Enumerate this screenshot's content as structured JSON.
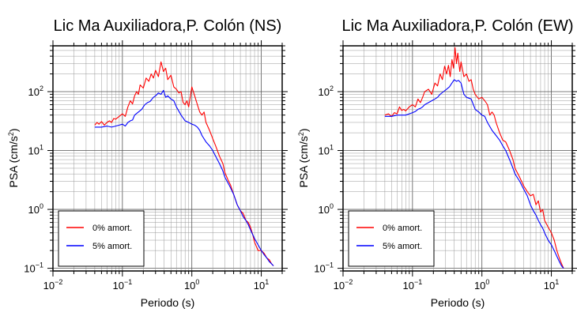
{
  "chart_data": [
    {
      "type": "line",
      "title": "Lic Ma Auxiliadora,P. Colón (NS)",
      "xlabel": "Periodo (s)",
      "ylabel": "PSA (cm/s2)",
      "xscale": "log",
      "yscale": "log",
      "xlim": [
        0.01,
        20
      ],
      "ylim": [
        0.09,
        600
      ],
      "x_ticks": [
        {
          "b": "10",
          "e": "−2",
          "v": 0.01
        },
        {
          "b": "10",
          "e": "−1",
          "v": 0.1
        },
        {
          "b": "10",
          "e": "0",
          "v": 1
        },
        {
          "b": "10",
          "e": "1",
          "v": 10
        }
      ],
      "y_ticks": [
        {
          "b": "10",
          "e": "−1",
          "v": 0.1
        },
        {
          "b": "10",
          "e": "0",
          "v": 1
        },
        {
          "b": "10",
          "e": "1",
          "v": 10
        },
        {
          "b": "10",
          "e": "2",
          "v": 100
        }
      ],
      "grid": true,
      "legend_placement": "bottom-left",
      "series": [
        {
          "name": "0% amort.",
          "color": "#ff0000",
          "points": [
            [
              0.04,
              27
            ],
            [
              0.043,
              30
            ],
            [
              0.046,
              28
            ],
            [
              0.05,
              31
            ],
            [
              0.055,
              27
            ],
            [
              0.06,
              30
            ],
            [
              0.065,
              32
            ],
            [
              0.07,
              30
            ],
            [
              0.075,
              35
            ],
            [
              0.08,
              34
            ],
            [
              0.09,
              38
            ],
            [
              0.1,
              42
            ],
            [
              0.11,
              38
            ],
            [
              0.12,
              55
            ],
            [
              0.13,
              70
            ],
            [
              0.14,
              62
            ],
            [
              0.15,
              85
            ],
            [
              0.16,
              100
            ],
            [
              0.17,
              90
            ],
            [
              0.18,
              130
            ],
            [
              0.2,
              115
            ],
            [
              0.22,
              170
            ],
            [
              0.24,
              150
            ],
            [
              0.26,
              200
            ],
            [
              0.28,
              170
            ],
            [
              0.3,
              230
            ],
            [
              0.33,
              180
            ],
            [
              0.36,
              320
            ],
            [
              0.39,
              220
            ],
            [
              0.42,
              250
            ],
            [
              0.45,
              160
            ],
            [
              0.5,
              190
            ],
            [
              0.55,
              120
            ],
            [
              0.6,
              110
            ],
            [
              0.65,
              95
            ],
            [
              0.7,
              100
            ],
            [
              0.75,
              65
            ],
            [
              0.8,
              60
            ],
            [
              0.85,
              70
            ],
            [
              0.9,
              55
            ],
            [
              1.0,
              120
            ],
            [
              1.1,
              85
            ],
            [
              1.2,
              60
            ],
            [
              1.3,
              45
            ],
            [
              1.4,
              40
            ],
            [
              1.5,
              45
            ],
            [
              1.6,
              30
            ],
            [
              1.8,
              22
            ],
            [
              2.0,
              16
            ],
            [
              2.2,
              12
            ],
            [
              2.5,
              8
            ],
            [
              2.8,
              6
            ],
            [
              3.0,
              4.2
            ],
            [
              3.3,
              3.2
            ],
            [
              3.6,
              2.6
            ],
            [
              4.0,
              1.8
            ],
            [
              4.5,
              1.2
            ],
            [
              5.0,
              0.95
            ],
            [
              5.5,
              0.85
            ],
            [
              6.0,
              0.65
            ],
            [
              6.5,
              0.6
            ],
            [
              7.0,
              0.5
            ],
            [
              7.5,
              0.38
            ],
            [
              8.0,
              0.28
            ],
            [
              9.0,
              0.2
            ],
            [
              10,
              0.2
            ],
            [
              11,
              0.18
            ],
            [
              12,
              0.15
            ],
            [
              13,
              0.14
            ],
            [
              14,
              0.12
            ],
            [
              15,
              0.11
            ]
          ]
        },
        {
          "name": "5% amort.",
          "color": "#0000ff",
          "points": [
            [
              0.04,
              25
            ],
            [
              0.05,
              25
            ],
            [
              0.06,
              26
            ],
            [
              0.07,
              25
            ],
            [
              0.08,
              26
            ],
            [
              0.09,
              27
            ],
            [
              0.1,
              28
            ],
            [
              0.11,
              26
            ],
            [
              0.12,
              30
            ],
            [
              0.13,
              32
            ],
            [
              0.14,
              33
            ],
            [
              0.15,
              40
            ],
            [
              0.17,
              45
            ],
            [
              0.19,
              50
            ],
            [
              0.21,
              60
            ],
            [
              0.23,
              65
            ],
            [
              0.25,
              68
            ],
            [
              0.28,
              80
            ],
            [
              0.3,
              85
            ],
            [
              0.33,
              95
            ],
            [
              0.36,
              90
            ],
            [
              0.39,
              105
            ],
            [
              0.42,
              80
            ],
            [
              0.45,
              85
            ],
            [
              0.5,
              75
            ],
            [
              0.55,
              70
            ],
            [
              0.6,
              55
            ],
            [
              0.7,
              40
            ],
            [
              0.8,
              32
            ],
            [
              0.9,
              30
            ],
            [
              1.0,
              28
            ],
            [
              1.1,
              27
            ],
            [
              1.2,
              25
            ],
            [
              1.3,
              22
            ],
            [
              1.4,
              18
            ],
            [
              1.6,
              14
            ],
            [
              1.8,
              12
            ],
            [
              2.0,
              10
            ],
            [
              2.2,
              8
            ],
            [
              2.5,
              6
            ],
            [
              2.8,
              4.5
            ],
            [
              3.0,
              3.5
            ],
            [
              3.5,
              2.5
            ],
            [
              4.0,
              1.8
            ],
            [
              4.5,
              1.2
            ],
            [
              5.0,
              0.95
            ],
            [
              5.5,
              0.75
            ],
            [
              6.0,
              0.65
            ],
            [
              6.5,
              0.55
            ],
            [
              7.0,
              0.45
            ],
            [
              8.0,
              0.32
            ],
            [
              9.0,
              0.25
            ],
            [
              10,
              0.2
            ],
            [
              11,
              0.17
            ],
            [
              12,
              0.15
            ],
            [
              13,
              0.13
            ],
            [
              14,
              0.12
            ],
            [
              15,
              0.11
            ]
          ]
        }
      ]
    },
    {
      "type": "line",
      "title": "Lic Ma Auxiliadora,P. Colón (EW)",
      "xlabel": "Periodo (s)",
      "ylabel": "PSA (cm/s2)",
      "xscale": "log",
      "yscale": "log",
      "xlim": [
        0.01,
        20
      ],
      "ylim": [
        0.09,
        600
      ],
      "x_ticks": [
        {
          "b": "10",
          "e": "−2",
          "v": 0.01
        },
        {
          "b": "10",
          "e": "−1",
          "v": 0.1
        },
        {
          "b": "10",
          "e": "0",
          "v": 1
        },
        {
          "b": "10",
          "e": "1",
          "v": 10
        }
      ],
      "y_ticks": [
        {
          "b": "10",
          "e": "−1",
          "v": 0.1
        },
        {
          "b": "10",
          "e": "0",
          "v": 1
        },
        {
          "b": "10",
          "e": "1",
          "v": 10
        },
        {
          "b": "10",
          "e": "2",
          "v": 100
        }
      ],
      "grid": true,
      "legend_placement": "bottom-left",
      "series": [
        {
          "name": "0% amort.",
          "color": "#ff0000",
          "points": [
            [
              0.04,
              40
            ],
            [
              0.045,
              42
            ],
            [
              0.05,
              38
            ],
            [
              0.055,
              44
            ],
            [
              0.06,
              42
            ],
            [
              0.065,
              55
            ],
            [
              0.07,
              48
            ],
            [
              0.075,
              50
            ],
            [
              0.08,
              47
            ],
            [
              0.09,
              55
            ],
            [
              0.1,
              60
            ],
            [
              0.11,
              55
            ],
            [
              0.12,
              75
            ],
            [
              0.13,
              65
            ],
            [
              0.14,
              80
            ],
            [
              0.15,
              100
            ],
            [
              0.17,
              110
            ],
            [
              0.19,
              90
            ],
            [
              0.21,
              140
            ],
            [
              0.23,
              125
            ],
            [
              0.25,
              200
            ],
            [
              0.27,
              160
            ],
            [
              0.29,
              270
            ],
            [
              0.31,
              200
            ],
            [
              0.33,
              280
            ],
            [
              0.35,
              180
            ],
            [
              0.37,
              350
            ],
            [
              0.39,
              250
            ],
            [
              0.41,
              560
            ],
            [
              0.43,
              300
            ],
            [
              0.45,
              450
            ],
            [
              0.48,
              220
            ],
            [
              0.5,
              320
            ],
            [
              0.55,
              180
            ],
            [
              0.6,
              200
            ],
            [
              0.65,
              150
            ],
            [
              0.7,
              160
            ],
            [
              0.75,
              110
            ],
            [
              0.8,
              90
            ],
            [
              0.9,
              75
            ],
            [
              1.0,
              80
            ],
            [
              1.1,
              70
            ],
            [
              1.2,
              60
            ],
            [
              1.3,
              40
            ],
            [
              1.4,
              45
            ],
            [
              1.5,
              40
            ],
            [
              1.6,
              30
            ],
            [
              1.8,
              20
            ],
            [
              2.0,
              15
            ],
            [
              2.2,
              14
            ],
            [
              2.5,
              10
            ],
            [
              2.8,
              7
            ],
            [
              3.0,
              5
            ],
            [
              3.5,
              3.5
            ],
            [
              4.0,
              2.5
            ],
            [
              4.5,
              2
            ],
            [
              5.0,
              1.7
            ],
            [
              5.5,
              1.8
            ],
            [
              6.0,
              1.2
            ],
            [
              6.5,
              1.4
            ],
            [
              7.0,
              0.9
            ],
            [
              7.5,
              1
            ],
            [
              8.0,
              0.65
            ],
            [
              9.0,
              0.5
            ],
            [
              10,
              0.4
            ],
            [
              11,
              0.3
            ],
            [
              12,
              0.2
            ],
            [
              13,
              0.15
            ],
            [
              14,
              0.12
            ],
            [
              15,
              0.1
            ]
          ]
        },
        {
          "name": "5% amort.",
          "color": "#0000ff",
          "points": [
            [
              0.04,
              38
            ],
            [
              0.05,
              38
            ],
            [
              0.06,
              40
            ],
            [
              0.07,
              40
            ],
            [
              0.08,
              40
            ],
            [
              0.09,
              42
            ],
            [
              0.1,
              44
            ],
            [
              0.11,
              46
            ],
            [
              0.12,
              50
            ],
            [
              0.13,
              52
            ],
            [
              0.14,
              55
            ],
            [
              0.15,
              60
            ],
            [
              0.17,
              65
            ],
            [
              0.19,
              70
            ],
            [
              0.21,
              75
            ],
            [
              0.23,
              80
            ],
            [
              0.25,
              90
            ],
            [
              0.28,
              100
            ],
            [
              0.31,
              110
            ],
            [
              0.34,
              120
            ],
            [
              0.37,
              140
            ],
            [
              0.4,
              160
            ],
            [
              0.43,
              150
            ],
            [
              0.46,
              155
            ],
            [
              0.5,
              140
            ],
            [
              0.55,
              90
            ],
            [
              0.6,
              80
            ],
            [
              0.7,
              75
            ],
            [
              0.8,
              50
            ],
            [
              0.9,
              45
            ],
            [
              1.0,
              40
            ],
            [
              1.1,
              38
            ],
            [
              1.2,
              30
            ],
            [
              1.4,
              22
            ],
            [
              1.6,
              18
            ],
            [
              1.8,
              15
            ],
            [
              2.0,
              12
            ],
            [
              2.2,
              10
            ],
            [
              2.5,
              7
            ],
            [
              2.8,
              5
            ],
            [
              3.0,
              4
            ],
            [
              3.5,
              3
            ],
            [
              4.0,
              2.2
            ],
            [
              4.5,
              1.7
            ],
            [
              5.0,
              1.2
            ],
            [
              5.5,
              0.95
            ],
            [
              6.0,
              0.8
            ],
            [
              6.5,
              0.65
            ],
            [
              7.0,
              0.55
            ],
            [
              7.5,
              0.48
            ],
            [
              8.0,
              0.4
            ],
            [
              9.0,
              0.3
            ],
            [
              10,
              0.25
            ],
            [
              11,
              0.2
            ],
            [
              12,
              0.16
            ],
            [
              13,
              0.13
            ],
            [
              14,
              0.11
            ],
            [
              15,
              0.1
            ]
          ]
        }
      ]
    }
  ]
}
